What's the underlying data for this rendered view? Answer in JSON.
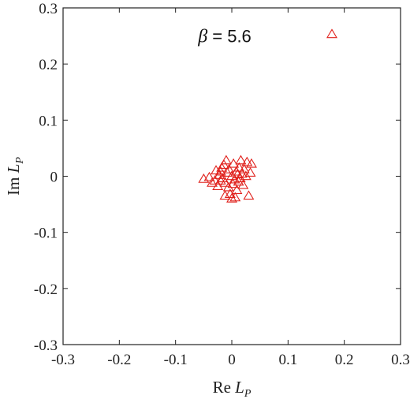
{
  "chart_data": {
    "type": "scatter",
    "title": "",
    "xlabel": {
      "prefix": "Re",
      "symbol": "L",
      "subscript": "P"
    },
    "ylabel": {
      "prefix": "Im",
      "symbol": "L",
      "subscript": "P"
    },
    "xlim": [
      -0.3,
      0.3
    ],
    "ylim": [
      -0.3,
      0.3
    ],
    "xticks": [
      -0.3,
      -0.2,
      -0.1,
      0,
      0.1,
      0.2,
      0.3
    ],
    "yticks": [
      -0.3,
      -0.2,
      -0.1,
      0,
      0.1,
      0.2,
      0.3
    ],
    "xtick_labels": [
      "-0.3",
      "-0.2",
      "-0.1",
      "0",
      "0.1",
      "0.2",
      "0.3"
    ],
    "ytick_labels": [
      "-0.3",
      "-0.2",
      "-0.1",
      "0",
      "0.1",
      "0.2",
      "0.3"
    ],
    "grid": false,
    "marker": "triangle",
    "color": "#e0211c",
    "annotation": {
      "symbol": "β",
      "text": " = 5.6",
      "x": -0.06,
      "y": 0.25
    },
    "points": [
      {
        "x": 0.178,
        "y": 0.253
      },
      {
        "x": -0.05,
        "y": -0.005
      },
      {
        "x": -0.04,
        "y": -0.002
      },
      {
        "x": -0.035,
        "y": -0.012
      },
      {
        "x": -0.03,
        "y": -0.008
      },
      {
        "x": -0.028,
        "y": 0.01
      },
      {
        "x": -0.025,
        "y": -0.018
      },
      {
        "x": -0.022,
        "y": 0.002
      },
      {
        "x": -0.02,
        "y": -0.008
      },
      {
        "x": -0.018,
        "y": 0.015
      },
      {
        "x": -0.016,
        "y": -0.004
      },
      {
        "x": -0.014,
        "y": 0.02
      },
      {
        "x": -0.012,
        "y": -0.012
      },
      {
        "x": -0.01,
        "y": 0.028
      },
      {
        "x": -0.008,
        "y": 0.006
      },
      {
        "x": -0.006,
        "y": -0.02
      },
      {
        "x": -0.005,
        "y": 0.012
      },
      {
        "x": -0.003,
        "y": -0.032
      },
      {
        "x": 0.0,
        "y": 0.0
      },
      {
        "x": 0.002,
        "y": -0.014
      },
      {
        "x": 0.003,
        "y": 0.022
      },
      {
        "x": 0.005,
        "y": -0.006
      },
      {
        "x": 0.006,
        "y": -0.038
      },
      {
        "x": 0.008,
        "y": 0.008
      },
      {
        "x": 0.009,
        "y": -0.025
      },
      {
        "x": 0.01,
        "y": 0.003
      },
      {
        "x": 0.012,
        "y": -0.01
      },
      {
        "x": 0.013,
        "y": 0.015
      },
      {
        "x": 0.015,
        "y": -0.004
      },
      {
        "x": 0.016,
        "y": 0.028
      },
      {
        "x": 0.018,
        "y": 0.004
      },
      {
        "x": 0.02,
        "y": -0.016
      },
      {
        "x": 0.022,
        "y": 0.012
      },
      {
        "x": 0.025,
        "y": 0.0
      },
      {
        "x": 0.027,
        "y": 0.025
      },
      {
        "x": 0.03,
        "y": -0.035
      },
      {
        "x": 0.033,
        "y": 0.006
      },
      {
        "x": -0.012,
        "y": -0.035
      },
      {
        "x": 0.0,
        "y": -0.04
      },
      {
        "x": -0.02,
        "y": 0.008
      },
      {
        "x": 0.035,
        "y": 0.022
      }
    ]
  }
}
